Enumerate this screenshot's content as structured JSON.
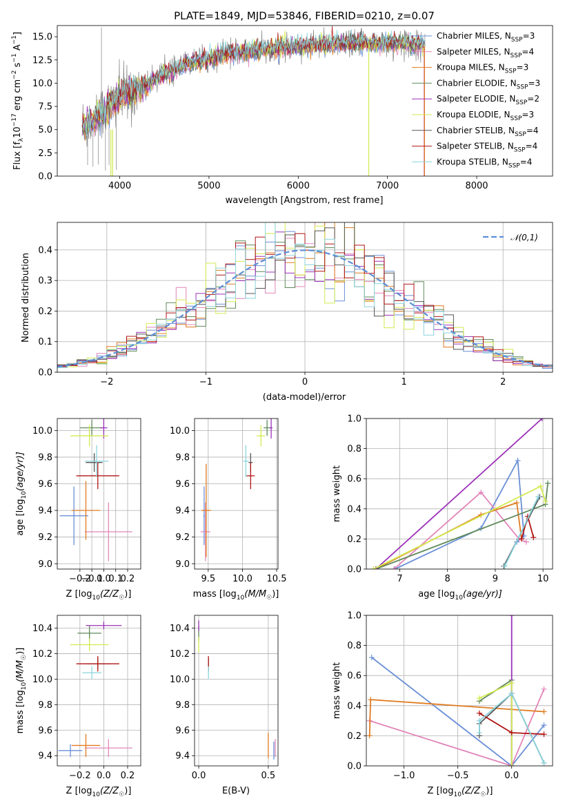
{
  "colors": {
    "Chabrier MILES": "#6a8fd6",
    "Salpeter MILES": "#e185b9",
    "Kroupa MILES": "#e07b20",
    "Chabrier ELODIE": "#5f8a5a",
    "Salpeter ELODIE": "#9b30b8",
    "Kroupa ELODIE": "#d2ea4e",
    "Chabrier STELIB": "#555555",
    "Salpeter STELIB": "#b01414",
    "Kroupa STELIB": "#8ad4dc",
    "data": "#808080",
    "normal": "#5b8fd6",
    "grid": "#b0b0b0"
  },
  "chart_data": [
    {
      "id": "spectrum",
      "type": "line",
      "title": "PLATE=1849, MJD=53846, FIBERID=0210, z=0.07",
      "xlabel": "wavelength [Angstrom, rest frame]",
      "ylabel_main": "Flux [f",
      "ylabel_sub": "λ",
      "ylabel_rest": "10",
      "ylabel_exp": "−17",
      "ylabel_unit": " erg cm",
      "ylabel_cm_exp": "−2",
      "ylabel_s": " s",
      "ylabel_s_exp": "−1",
      "ylabel_A": " A",
      "ylabel_A_exp": "−1",
      "ylabel_end": "]",
      "xlim": [
        3300,
        8850
      ],
      "ylim": [
        0,
        16.2
      ],
      "xticks": [
        4000,
        5000,
        6000,
        7000,
        8000
      ],
      "yticks": [
        0.0,
        2.5,
        5.0,
        7.5,
        10.0,
        12.5,
        15.0
      ],
      "grid": false,
      "legend_position": "top-right",
      "legend": [
        {
          "name": "Chabrier MILES",
          "n": "3"
        },
        {
          "name": "Salpeter MILES",
          "n": "4"
        },
        {
          "name": "Kroupa MILES",
          "n": "3"
        },
        {
          "name": "Chabrier ELODIE",
          "n": "3"
        },
        {
          "name": "Salpeter ELODIE",
          "n": "2"
        },
        {
          "name": "Kroupa ELODIE",
          "n": "3"
        },
        {
          "name": "Chabrier STELIB",
          "n": "4"
        },
        {
          "name": "Salpeter STELIB",
          "n": "4"
        },
        {
          "name": "Kroupa STELIB",
          "n": "4"
        }
      ],
      "legend_n_prefix": "N",
      "legend_n_sub": "SSP",
      "continuum_x": [
        3580,
        3700,
        3800,
        3900,
        4000,
        4100,
        4300,
        4500,
        4800,
        5200,
        5600,
        6000,
        6400,
        6800,
        7200,
        7400
      ],
      "continuum_y": [
        5.5,
        6.0,
        6.8,
        7.6,
        8.4,
        9.0,
        9.8,
        11.0,
        12.2,
        13.2,
        13.6,
        14.0,
        14.2,
        14.3,
        14.3,
        14.0
      ],
      "model_range": [
        3580,
        7420
      ],
      "spikes": [
        {
          "x": 3900,
          "y_from": 5.0,
          "y_to": 0,
          "series": "Kroupa ELODIE"
        },
        {
          "x": 3920,
          "y_from": 5.0,
          "y_to": 0,
          "series": "Kroupa ELODIE"
        },
        {
          "x": 6790,
          "y_from": 14.5,
          "y_to": 0,
          "series": "Kroupa ELODIE"
        },
        {
          "x": 7410,
          "y_from": 14.0,
          "y_to": 0,
          "series": "Salpeter MILES"
        },
        {
          "x": 7415,
          "y_from": 14.0,
          "y_to": 0,
          "series": "Kroupa MILES"
        }
      ]
    },
    {
      "id": "residuals",
      "type": "histogram",
      "xlabel": "(data-model)/error",
      "ylabel": "Normed distribution",
      "xlim": [
        -2.5,
        2.5
      ],
      "ylim": [
        0,
        0.49
      ],
      "xticks": [
        -2,
        -1,
        0,
        1,
        2
      ],
      "yticks": [
        0.0,
        0.1,
        0.2,
        0.3,
        0.4
      ],
      "grid": true,
      "bin_width": 0.1,
      "legend_label": "𝒩(0,1)",
      "legend_position": "top-right"
    },
    {
      "id": "age_vs_Z",
      "type": "errorbar",
      "xlabel": "Z [log",
      "xlabel_sub": "10",
      "xlabel_rest": "(Z/Z",
      "xlabel_sun": "☉",
      "xlabel_end": ")]",
      "ylabel": "age  [log",
      "ylabel_sub": "10",
      "ylabel_rest": "(age/yr)]",
      "xlim": [
        -0.39,
        0.31
      ],
      "ylim": [
        8.96,
        10.09
      ],
      "xticks": [
        -0.2,
        -0.1,
        0.0,
        0.1,
        0.2
      ],
      "xtick_labels": [
        "−0.2",
        "−0.1",
        "0.0",
        "0.1",
        "0.2"
      ],
      "xtick_show": [
        -0.2,
        0.0,
        0.2
      ],
      "xtick_show_labels": [
        "−0.2",
        "0.0",
        "0.2"
      ],
      "yticks": [
        9.0,
        9.2,
        9.4,
        9.6,
        9.8,
        10.0
      ],
      "grid": true,
      "points": [
        {
          "series": "Chabrier MILES",
          "x": -0.25,
          "y": 9.36,
          "xerr": 0.12,
          "yerr": 0.22
        },
        {
          "series": "Salpeter MILES",
          "x": 0.04,
          "y": 9.24,
          "xerr": 0.2,
          "yerr": 0.22
        },
        {
          "series": "Kroupa MILES",
          "x": -0.15,
          "y": 9.4,
          "xerr": 0.12,
          "yerr": 0.22
        },
        {
          "series": "Chabrier ELODIE",
          "x": -0.1,
          "y": 10.02,
          "xerr": 0.1,
          "yerr": 0.06
        },
        {
          "series": "Salpeter ELODIE",
          "x": 0.0,
          "y": 10.02,
          "xerr": 0.03,
          "yerr": 0.08
        },
        {
          "series": "Kroupa ELODIE",
          "x": -0.12,
          "y": 9.96,
          "xerr": 0.16,
          "yerr": 0.08
        },
        {
          "series": "Chabrier STELIB",
          "x": -0.08,
          "y": 9.76,
          "xerr": 0.07,
          "yerr": 0.07
        },
        {
          "series": "Salpeter STELIB",
          "x": -0.05,
          "y": 9.66,
          "xerr": 0.18,
          "yerr": 0.1
        },
        {
          "series": "Kroupa STELIB",
          "x": -0.06,
          "y": 9.77,
          "xerr": 0.1,
          "yerr": 0.12
        }
      ]
    },
    {
      "id": "age_vs_mass",
      "type": "errorbar",
      "xlabel": "mass [log",
      "xlabel_sub": "10",
      "xlabel_rest": "(M/M",
      "xlabel_sun": "☉",
      "xlabel_end": ")]",
      "xlim": [
        9.3,
        10.52
      ],
      "ylim": [
        8.96,
        10.09
      ],
      "xticks": [
        9.5,
        10.0,
        10.5
      ],
      "yticks": [
        9.0,
        9.2,
        9.4,
        9.6,
        9.8,
        10.0
      ],
      "grid": true,
      "points": [
        {
          "series": "Chabrier MILES",
          "x": 9.44,
          "y": 9.36,
          "xerr": 0.01,
          "yerr": 0.22
        },
        {
          "series": "Salpeter MILES",
          "x": 9.46,
          "y": 9.24,
          "xerr": 0.07,
          "yerr": 0.22
        },
        {
          "series": "Kroupa MILES",
          "x": 9.47,
          "y": 9.4,
          "xerr": 0.07,
          "yerr": 0.35
        },
        {
          "series": "Chabrier ELODIE",
          "x": 10.36,
          "y": 10.02,
          "xerr": 0.05,
          "yerr": 0.06
        },
        {
          "series": "Salpeter ELODIE",
          "x": 10.42,
          "y": 10.02,
          "xerr": 0.02,
          "yerr": 0.08
        },
        {
          "series": "Kroupa ELODIE",
          "x": 10.27,
          "y": 9.96,
          "xerr": 0.06,
          "yerr": 0.08
        },
        {
          "series": "Chabrier STELIB",
          "x": 10.12,
          "y": 9.76,
          "xerr": 0.03,
          "yerr": 0.07
        },
        {
          "series": "Salpeter STELIB",
          "x": 10.12,
          "y": 9.66,
          "xerr": 0.06,
          "yerr": 0.1
        },
        {
          "series": "Kroupa STELIB",
          "x": 10.05,
          "y": 9.77,
          "xerr": 0.04,
          "yerr": 0.12
        }
      ]
    },
    {
      "id": "weight_vs_age",
      "type": "line",
      "xlabel": "age  [log",
      "xlabel_sub": "10",
      "xlabel_rest": "(age/yr)]",
      "ylabel": "mass weight",
      "xlim": [
        6.3,
        10.2
      ],
      "ylim": [
        0,
        1.0
      ],
      "xticks": [
        7,
        8,
        9,
        10
      ],
      "yticks": [
        0.0,
        0.2,
        0.4,
        0.6,
        0.8,
        1.0
      ],
      "grid": true,
      "series": [
        {
          "name": "Chabrier MILES",
          "x": [
            6.9,
            8.7,
            9.47,
            9.6,
            9.45
          ],
          "y": [
            0.0,
            0.27,
            0.72,
            0.22,
            0.18
          ]
        },
        {
          "name": "Salpeter MILES",
          "x": [
            6.88,
            8.7,
            9.5,
            9.65
          ],
          "y": [
            0.0,
            0.51,
            0.2,
            0.18
          ]
        },
        {
          "name": "Kroupa MILES",
          "x": [
            6.5,
            8.7,
            9.45,
            9.55
          ],
          "y": [
            0.0,
            0.36,
            0.44,
            0.2
          ]
        },
        {
          "name": "Chabrier ELODIE",
          "x": [
            6.5,
            10.05,
            10.1
          ],
          "y": [
            0.0,
            0.43,
            0.57
          ]
        },
        {
          "name": "Salpeter ELODIE",
          "x": [
            6.5,
            9.98
          ],
          "y": [
            0.0,
            1.0
          ]
        },
        {
          "name": "Kroupa ELODIE",
          "x": [
            6.45,
            9.95,
            10.05
          ],
          "y": [
            0.0,
            0.55,
            0.45
          ]
        },
        {
          "name": "Chabrier STELIB",
          "x": [
            9.18,
            9.93
          ],
          "y": [
            0.02,
            0.48
          ]
        },
        {
          "name": "Salpeter STELIB",
          "x": [
            9.55,
            9.68,
            9.8
          ],
          "y": [
            0.2,
            0.35,
            0.21
          ]
        },
        {
          "name": "Kroupa STELIB",
          "x": [
            9.2,
            9.9
          ],
          "y": [
            0.02,
            0.48
          ]
        }
      ]
    },
    {
      "id": "mass_vs_Z",
      "type": "errorbar",
      "xlabel": "Z [log",
      "xlabel_sub": "10",
      "xlabel_rest": "(Z/Z",
      "xlabel_sun": "☉",
      "xlabel_end": ")]",
      "ylabel": "mass [log",
      "ylabel_sub": "10",
      "ylabel_rest": "(M/M",
      "ylabel_sun": "☉",
      "ylabel_end": ")]",
      "xlim": [
        -0.39,
        0.31
      ],
      "ylim": [
        9.32,
        10.5
      ],
      "xticks": [
        -0.2,
        0.0,
        0.2
      ],
      "xtick_labels": [
        "−0.2",
        "0.0",
        "0.2"
      ],
      "yticks": [
        9.4,
        9.6,
        9.8,
        10.0,
        10.2,
        10.4
      ],
      "grid": true,
      "points": [
        {
          "series": "Chabrier MILES",
          "x": -0.28,
          "y": 9.44,
          "xerr": 0.1,
          "yerr": 0.05
        },
        {
          "series": "Salpeter MILES",
          "x": 0.04,
          "y": 9.46,
          "xerr": 0.2,
          "yerr": 0.07
        },
        {
          "series": "Kroupa MILES",
          "x": -0.15,
          "y": 9.48,
          "xerr": 0.12,
          "yerr": 0.09
        },
        {
          "series": "Chabrier ELODIE",
          "x": -0.12,
          "y": 10.36,
          "xerr": 0.1,
          "yerr": 0.06
        },
        {
          "series": "Salpeter ELODIE",
          "x": 0.0,
          "y": 10.42,
          "xerr": 0.15,
          "yerr": 0.03
        },
        {
          "series": "Kroupa ELODIE",
          "x": -0.12,
          "y": 10.27,
          "xerr": 0.16,
          "yerr": 0.05
        },
        {
          "series": "Chabrier STELIB",
          "x": -0.05,
          "y": 10.12,
          "xerr": 0.1,
          "yerr": 0.04
        },
        {
          "series": "Salpeter STELIB",
          "x": -0.05,
          "y": 10.12,
          "xerr": 0.18,
          "yerr": 0.06
        },
        {
          "series": "Kroupa STELIB",
          "x": -0.1,
          "y": 10.05,
          "xerr": 0.08,
          "yerr": 0.05
        }
      ]
    },
    {
      "id": "mass_vs_ebv",
      "type": "errorbar",
      "xlabel": "E(B-V)",
      "xlim": [
        -0.03,
        0.57
      ],
      "ylim": [
        9.32,
        10.5
      ],
      "xticks": [
        0.0,
        0.5
      ],
      "yticks": [
        9.4,
        9.6,
        9.8,
        10.0,
        10.2,
        10.4
      ],
      "grid": true,
      "points": [
        {
          "series": "Chabrier MILES",
          "x": 0.54,
          "y": 9.44,
          "xerr": 0,
          "yerr": 0.07
        },
        {
          "series": "Salpeter MILES",
          "x": 0.55,
          "y": 9.46,
          "xerr": 0,
          "yerr": 0.07
        },
        {
          "series": "Kroupa MILES",
          "x": 0.5,
          "y": 9.48,
          "xerr": 0,
          "yerr": 0.1
        },
        {
          "series": "Chabrier ELODIE",
          "x": 0.0,
          "y": 10.36,
          "xerr": 0,
          "yerr": 0.06
        },
        {
          "series": "Salpeter ELODIE",
          "x": 0.0,
          "y": 10.42,
          "xerr": 0,
          "yerr": 0.04
        },
        {
          "series": "Kroupa ELODIE",
          "x": 0.0,
          "y": 10.27,
          "xerr": 0,
          "yerr": 0.06
        },
        {
          "series": "Chabrier STELIB",
          "x": 0.07,
          "y": 10.12,
          "xerr": 0,
          "yerr": 0.04
        },
        {
          "series": "Salpeter STELIB",
          "x": 0.07,
          "y": 10.12,
          "xerr": 0,
          "yerr": 0.06
        },
        {
          "series": "Kroupa STELIB",
          "x": 0.07,
          "y": 10.05,
          "xerr": 0,
          "yerr": 0.05
        }
      ]
    },
    {
      "id": "weight_vs_Z",
      "type": "line",
      "xlabel": "Z [log",
      "xlabel_sub": "10",
      "xlabel_rest": "(Z/Z",
      "xlabel_sun": "☉",
      "xlabel_end": ")]",
      "ylabel": "mass weight",
      "xlim": [
        -1.35,
        0.38
      ],
      "ylim": [
        0,
        1.0
      ],
      "xticks": [
        -1.0,
        -0.5,
        0.0
      ],
      "xtick_labels": [
        "−1.0",
        "−0.5",
        "0.0"
      ],
      "yticks": [
        0.0,
        0.2,
        0.4,
        0.6,
        0.8,
        1.0
      ],
      "grid": true,
      "series": [
        {
          "name": "Chabrier MILES",
          "x": [
            -1.3,
            0.0,
            0.3
          ],
          "y": [
            0.72,
            0.0,
            0.27
          ]
        },
        {
          "name": "Salpeter MILES",
          "x": [
            -1.32,
            0.0,
            0.3
          ],
          "y": [
            0.3,
            0.0,
            0.51
          ]
        },
        {
          "name": "Kroupa MILES",
          "x": [
            -1.32,
            -1.31,
            0.3
          ],
          "y": [
            0.2,
            0.44,
            0.36
          ]
        },
        {
          "name": "Chabrier ELODIE",
          "x": [
            -0.3,
            0.0,
            0.0
          ],
          "y": [
            0.43,
            0.57,
            0.0
          ]
        },
        {
          "name": "Salpeter ELODIE",
          "x": [
            0.0,
            0.0
          ],
          "y": [
            0.0,
            1.0
          ]
        },
        {
          "name": "Kroupa ELODIE",
          "x": [
            -0.3,
            0.0,
            0.0
          ],
          "y": [
            0.45,
            0.55,
            0.0
          ]
        },
        {
          "name": "Chabrier STELIB",
          "x": [
            -0.3,
            -0.3,
            0.0,
            0.3
          ],
          "y": [
            0.2,
            0.28,
            0.48,
            0.02
          ]
        },
        {
          "name": "Salpeter STELIB",
          "x": [
            -0.3,
            0.0,
            0.3
          ],
          "y": [
            0.35,
            0.22,
            0.21
          ]
        },
        {
          "name": "Kroupa STELIB",
          "x": [
            -0.3,
            -0.3,
            0.0,
            0.3
          ],
          "y": [
            0.22,
            0.3,
            0.48,
            0.02
          ]
        }
      ]
    }
  ]
}
